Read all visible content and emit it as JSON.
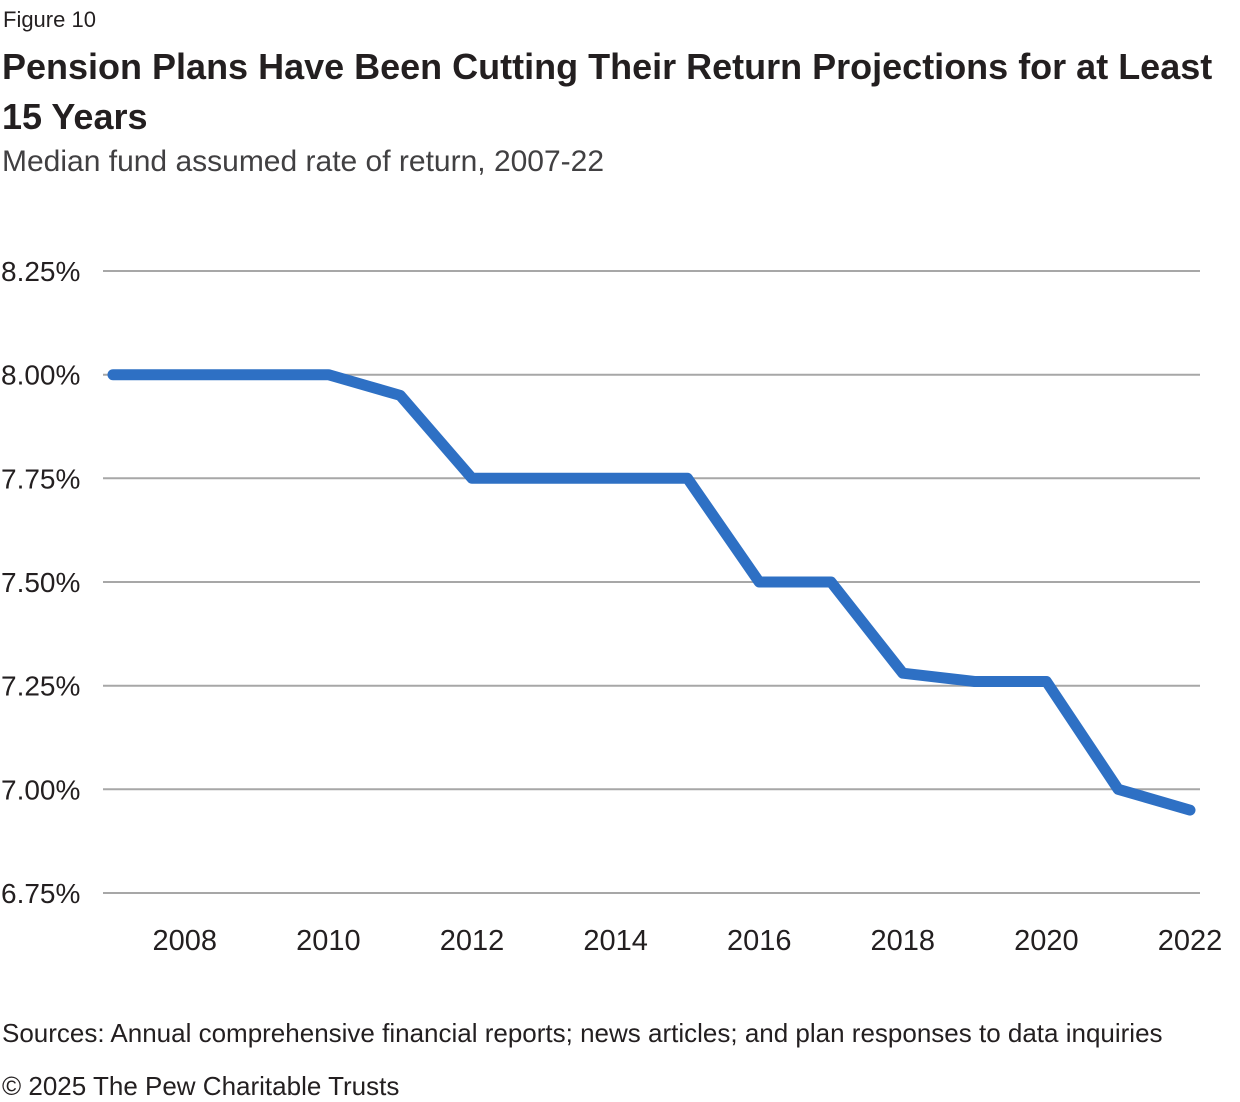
{
  "header": {
    "figure_label": "Figure 10",
    "title": "Pension Plans Have Been Cutting Their Return Projections for at Least 15 Years",
    "subtitle": "Median fund assumed rate of return, 2007-22"
  },
  "footer": {
    "sources": "Sources: Annual comprehensive financial reports; news articles; and plan responses to data inquiries",
    "copyright": "© 2025 The Pew Charitable Trusts"
  },
  "colors": {
    "line": "#2E70C4",
    "gridline": "#A7A7A7",
    "title_text": "#231F20",
    "subtitle_text": "#414042",
    "tick_text": "#231F20",
    "footer_text": "#231F20"
  },
  "chart_data": {
    "type": "line",
    "title": "Pension Plans Have Been Cutting Their Return Projections for at Least 15 Years",
    "subtitle": "Median fund assumed rate of return, 2007-22",
    "x": [
      2007,
      2008,
      2009,
      2010,
      2011,
      2012,
      2013,
      2014,
      2015,
      2016,
      2017,
      2018,
      2019,
      2020,
      2021,
      2022
    ],
    "series": [
      {
        "name": "Median fund assumed rate of return",
        "values": [
          8.0,
          8.0,
          8.0,
          8.0,
          7.95,
          7.75,
          7.75,
          7.75,
          7.75,
          7.5,
          7.5,
          7.28,
          7.26,
          7.26,
          7.0,
          6.95
        ]
      }
    ],
    "y_ticks": [
      "8.25%",
      "8.00%",
      "7.75%",
      "7.50%",
      "7.25%",
      "7.00%",
      "6.75%"
    ],
    "y_tick_values": [
      8.25,
      8.0,
      7.75,
      7.5,
      7.25,
      7.0,
      6.75
    ],
    "x_tick_labels": [
      "2008",
      "2010",
      "2012",
      "2014",
      "2016",
      "2018",
      "2020",
      "2022"
    ],
    "x_tick_years": [
      2008,
      2010,
      2012,
      2014,
      2016,
      2018,
      2020,
      2022
    ],
    "xlim": [
      2007,
      2022
    ],
    "ylim": [
      6.75,
      8.25
    ],
    "grid": "horizontal",
    "legend": "none"
  }
}
